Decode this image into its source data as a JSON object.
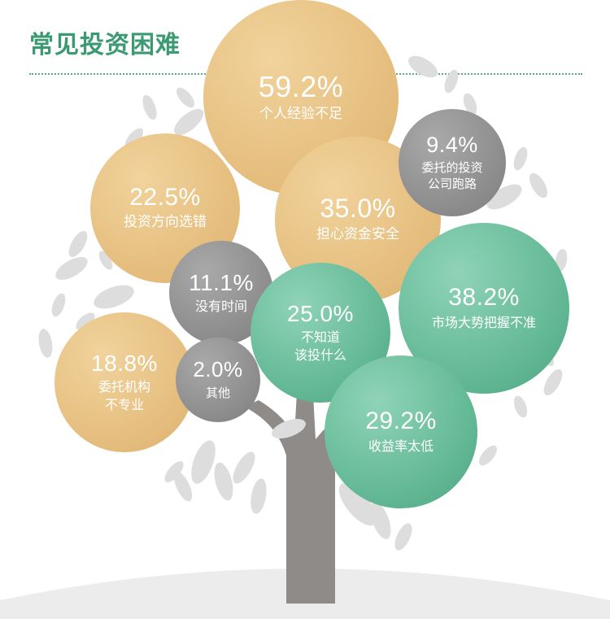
{
  "title": "常见投资困难",
  "colors": {
    "title": "#3c9a73",
    "gold": "#e4bc7c",
    "gray": "#8b8b8b",
    "green": "#62b894",
    "trunk": "#8f8b88",
    "leaf": "#dcdcdc",
    "ground": "#ececec"
  },
  "chart_data": {
    "type": "bubble",
    "title": "常见投资困难",
    "unit": "%",
    "items": [
      {
        "label": "个人经验不足",
        "value": 59.2,
        "display": "59.2%",
        "group": "gold"
      },
      {
        "label": "担心资金安全",
        "value": 35.0,
        "display": "35.0%",
        "group": "gold"
      },
      {
        "label": "投资方向选错",
        "value": 22.5,
        "display": "22.5%",
        "group": "gold"
      },
      {
        "label": "委托机构\n不专业",
        "value": 18.8,
        "display": "18.8%",
        "group": "gold"
      },
      {
        "label": "委托的投资\n公司跑路",
        "value": 9.4,
        "display": "9.4%",
        "group": "gray"
      },
      {
        "label": "没有时间",
        "value": 11.1,
        "display": "11.1%",
        "group": "gray"
      },
      {
        "label": "其他",
        "value": 2.0,
        "display": "2.0%",
        "group": "gray"
      },
      {
        "label": "市场大势把握不准",
        "value": 38.2,
        "display": "38.2%",
        "group": "green"
      },
      {
        "label": "不知道\n该投什么",
        "value": 25.0,
        "display": "25.0%",
        "group": "green"
      },
      {
        "label": "收益率太低",
        "value": 29.2,
        "display": "29.2%",
        "group": "green"
      }
    ]
  }
}
